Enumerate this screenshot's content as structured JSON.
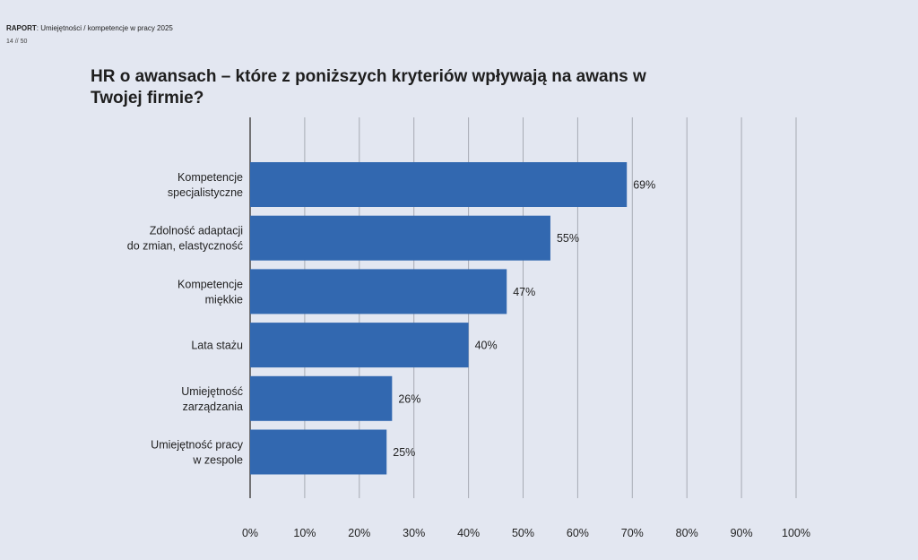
{
  "header": {
    "label": "RAPORT",
    "text": ": Umiejętności / kompetencje w pracy 2025",
    "page": "14 // 50"
  },
  "chart_data": {
    "type": "bar",
    "orientation": "horizontal",
    "title": "HR o awansach – które z poniższych kryteriów wpływają na awans w Twojej firmie?",
    "categories": [
      [
        "Kompetencje",
        "specjalistyczne"
      ],
      [
        "Zdolność adaptacji",
        "do zmian, elastyczność"
      ],
      [
        "Kompetencje",
        "miękkie"
      ],
      [
        "Lata stażu"
      ],
      [
        "Umiejętność",
        "zarządzania"
      ],
      [
        "Umiejętność pracy",
        "w zespole"
      ]
    ],
    "values": [
      69,
      55,
      47,
      40,
      26,
      25
    ],
    "value_labels": [
      "69%",
      "55%",
      "47%",
      "40%",
      "26%",
      "25%"
    ],
    "xlim": [
      0,
      100
    ],
    "xticks": [
      "0%",
      "10%",
      "20%",
      "30%",
      "40%",
      "50%",
      "60%",
      "70%",
      "80%",
      "90%",
      "100%"
    ],
    "grid": "vertical",
    "colors": {
      "bar": "#3268b0",
      "grid": "#a7abb4",
      "axis": "#555555",
      "background": "#e3e7f1"
    }
  }
}
